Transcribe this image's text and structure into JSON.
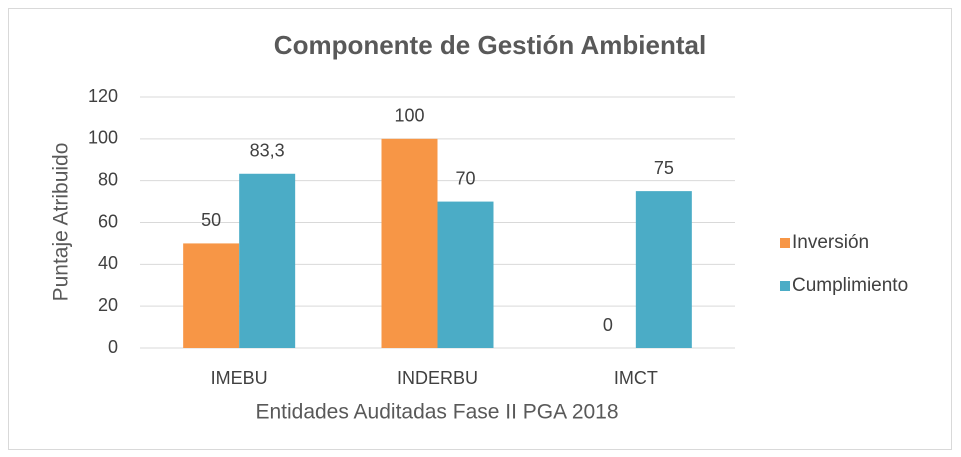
{
  "chart_data": {
    "type": "bar",
    "title": "Componente de Gestión Ambiental",
    "x_label": "Entidades Auditadas Fase II PGA 2018",
    "y_label": "Puntaje Atribuido",
    "categories": [
      "IMEBU",
      "INDERBU",
      "IMCT"
    ],
    "series": [
      {
        "name": "Inversión",
        "color": "#f79646",
        "values": [
          50,
          100,
          0
        ]
      },
      {
        "name": "Cumplimiento",
        "color": "#4bacc6",
        "values": [
          83.3,
          70,
          75
        ],
        "value_labels": [
          "83,3",
          "70",
          "75"
        ]
      }
    ],
    "ylim": [
      0,
      120
    ],
    "yticks": [
      0,
      20,
      40,
      60,
      80,
      100,
      120
    ],
    "grid": true,
    "legend": "right"
  }
}
